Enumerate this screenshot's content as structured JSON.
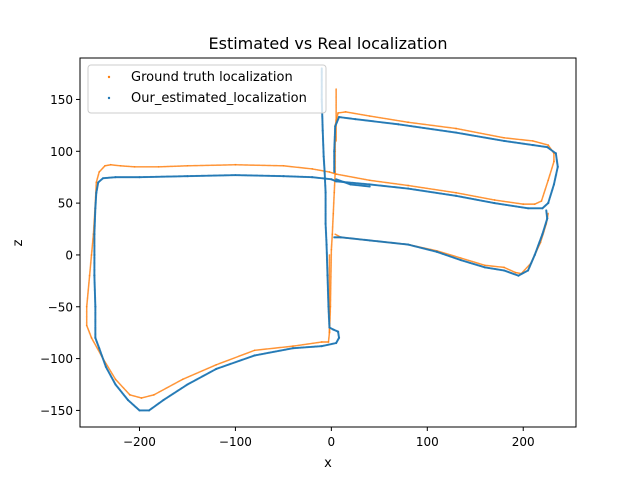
{
  "chart_data": {
    "type": "scatter",
    "title": "Estimated vs Real localization",
    "xlabel": "x",
    "ylabel": "z",
    "xlim": [
      -262,
      255
    ],
    "ylim": [
      -166,
      190
    ],
    "xticks": [
      -200,
      -100,
      0,
      100,
      200
    ],
    "yticks": [
      -150,
      -100,
      -50,
      0,
      50,
      100,
      150
    ],
    "legend_position": "upper-left",
    "grid": false,
    "series": [
      {
        "name": "Ground truth localization",
        "color": "#ff7f0e",
        "paths": [
          [
            [
              -2,
              0
            ],
            [
              -2,
              -75
            ],
            [
              -3,
              -84
            ],
            [
              -10,
              -84
            ],
            [
              -40,
              -88
            ],
            [
              -80,
              -92
            ],
            [
              -120,
              -106
            ],
            [
              -155,
              -120
            ],
            [
              -185,
              -135
            ],
            [
              -198,
              -138
            ],
            [
              -210,
              -135
            ],
            [
              -225,
              -120
            ],
            [
              -238,
              -100
            ],
            [
              -250,
              -80
            ],
            [
              -255,
              -68
            ],
            [
              -255,
              -50
            ],
            [
              -252,
              -20
            ],
            [
              -250,
              0
            ],
            [
              -248,
              20
            ],
            [
              -246,
              50
            ],
            [
              -245,
              70
            ],
            [
              -242,
              80
            ],
            [
              -236,
              86
            ],
            [
              -230,
              87
            ],
            [
              -220,
              86
            ],
            [
              -205,
              85
            ],
            [
              -180,
              85
            ],
            [
              -150,
              86
            ],
            [
              -100,
              87
            ],
            [
              -50,
              86
            ],
            [
              -20,
              83
            ],
            [
              -2,
              80
            ],
            [
              5,
              78
            ],
            [
              40,
              72
            ],
            [
              80,
              67
            ],
            [
              130,
              60
            ],
            [
              170,
              53
            ],
            [
              200,
              49
            ],
            [
              212,
              49
            ],
            [
              219,
              52
            ],
            [
              226,
              72
            ],
            [
              232,
              90
            ],
            [
              232,
              98
            ],
            [
              226,
              106
            ],
            [
              210,
              110
            ],
            [
              180,
              113
            ],
            [
              130,
              122
            ],
            [
              80,
              128
            ],
            [
              40,
              134
            ],
            [
              15,
              138
            ],
            [
              7,
              137
            ],
            [
              4,
              125
            ],
            [
              4,
              100
            ],
            [
              4,
              80
            ],
            [
              3,
              60
            ],
            [
              2,
              40
            ],
            [
              1,
              20
            ],
            [
              0,
              5
            ],
            [
              -1,
              -50
            ],
            [
              -2,
              -75
            ]
          ],
          [
            [
              5,
              160
            ],
            [
              5,
              130
            ],
            [
              5,
              110
            ]
          ],
          [
            [
              4,
              20
            ],
            [
              10,
              17
            ],
            [
              40,
              14
            ],
            [
              80,
              10
            ],
            [
              110,
              4
            ],
            [
              135,
              -3
            ],
            [
              160,
              -10
            ],
            [
              180,
              -12
            ],
            [
              192,
              -17
            ],
            [
              198,
              -18
            ],
            [
              208,
              -8
            ],
            [
              218,
              12
            ],
            [
              224,
              30
            ],
            [
              226,
              40
            ]
          ]
        ]
      },
      {
        "name": "Our_estimated_localization",
        "color": "#1f77b4",
        "paths": [
          [
            [
              -10,
              180
            ],
            [
              -10,
              150
            ],
            [
              -9,
              120
            ],
            [
              -8,
              95
            ],
            [
              -7,
              80
            ],
            [
              -6,
              60
            ],
            [
              -6,
              30
            ],
            [
              -5,
              10
            ],
            [
              -4,
              -20
            ],
            [
              -3,
              -50
            ],
            [
              -2,
              -70
            ],
            [
              2,
              -72
            ],
            [
              7,
              -74
            ],
            [
              8,
              -80
            ],
            [
              5,
              -85
            ],
            [
              -10,
              -88
            ],
            [
              -40,
              -90
            ],
            [
              -80,
              -97
            ],
            [
              -120,
              -110
            ],
            [
              -150,
              -125
            ],
            [
              -175,
              -140
            ],
            [
              -190,
              -150
            ],
            [
              -200,
              -150
            ],
            [
              -212,
              -140
            ],
            [
              -225,
              -125
            ],
            [
              -235,
              -108
            ],
            [
              -242,
              -90
            ],
            [
              -246,
              -80
            ],
            [
              -246,
              -50
            ],
            [
              -247,
              -20
            ],
            [
              -247,
              0
            ],
            [
              -247,
              20
            ],
            [
              -246,
              45
            ],
            [
              -245,
              60
            ],
            [
              -243,
              70
            ],
            [
              -238,
              74
            ],
            [
              -225,
              75
            ],
            [
              -200,
              75
            ],
            [
              -150,
              76
            ],
            [
              -100,
              77
            ],
            [
              -50,
              76
            ],
            [
              -20,
              75
            ],
            [
              0,
              73
            ],
            [
              5,
              71
            ],
            [
              40,
              68
            ],
            [
              80,
              64
            ],
            [
              130,
              57
            ],
            [
              170,
              50
            ],
            [
              205,
              45
            ],
            [
              220,
              45
            ],
            [
              226,
              50
            ],
            [
              232,
              68
            ],
            [
              236,
              85
            ],
            [
              234,
              98
            ],
            [
              225,
              104
            ],
            [
              210,
              106
            ],
            [
              180,
              110
            ],
            [
              130,
              118
            ],
            [
              70,
              126
            ],
            [
              25,
              131
            ],
            [
              8,
              133
            ],
            [
              4,
              124
            ],
            [
              3,
              100
            ],
            [
              3,
              80
            ]
          ],
          [
            [
              5,
              73
            ],
            [
              20,
              68
            ],
            [
              40,
              66
            ]
          ],
          [
            [
              3,
              17
            ],
            [
              10,
              17
            ],
            [
              40,
              14
            ],
            [
              80,
              10
            ],
            [
              110,
              3
            ],
            [
              135,
              -5
            ],
            [
              160,
              -12
            ],
            [
              180,
              -15
            ],
            [
              195,
              -20
            ],
            [
              205,
              -15
            ],
            [
              212,
              0
            ],
            [
              220,
              20
            ],
            [
              225,
              35
            ],
            [
              224,
              43
            ]
          ]
        ]
      }
    ]
  }
}
